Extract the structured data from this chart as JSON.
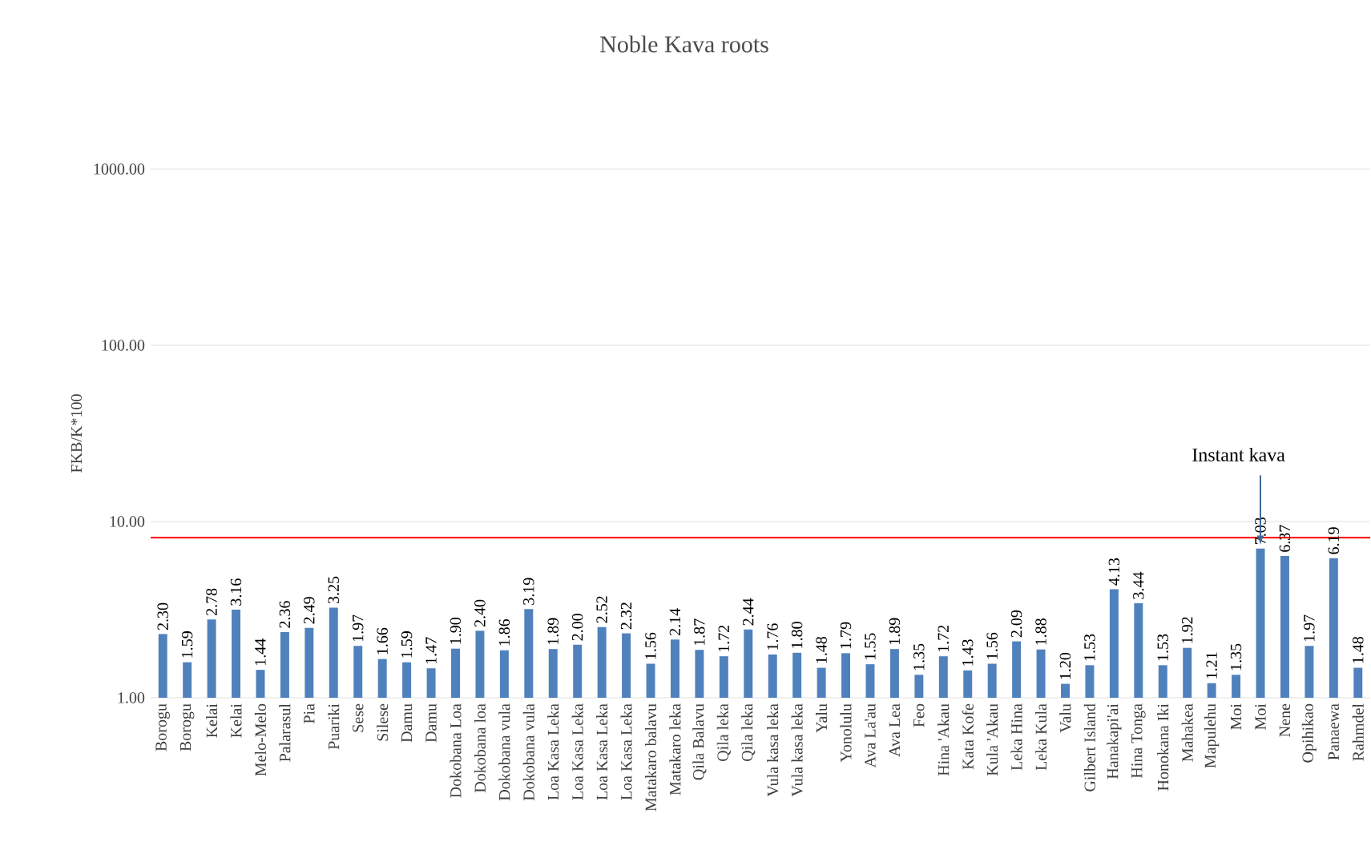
{
  "chart_data": {
    "type": "bar",
    "title": "Noble Kava roots",
    "ylabel": "FKB/K*100",
    "categories": [
      "Borogu",
      "Borogu",
      "Kelai",
      "Kelai",
      "Melo-Melo",
      "Palarasul",
      "Pia",
      "Puariki",
      "Sese",
      "Silese",
      "Damu",
      "Damu",
      "Dokobana Loa",
      "Dokobana loa",
      "Dokobana vula",
      "Dokobana vula",
      "Loa Kasa Leka",
      "Loa Kasa Leka",
      "Loa Kasa Leka",
      "Loa Kasa Leka",
      "Matakaro balavu",
      "Matakaro leka",
      "Qila Balavu",
      "Qila leka",
      "Qila leka",
      "Vula kasa leka",
      "Vula kasa leka",
      "Yalu",
      "Yonolulu",
      "Ava La'au",
      "Ava Lea",
      "Feo",
      "Hina 'Akau",
      "Kata Kofe",
      "Kula 'Akau",
      "Leka Hina",
      "Leka Kula",
      "Valu",
      "Gilbert Island",
      "Hanakapi'ai",
      "Hina Tonga",
      "Honokana Iki",
      "Mahakea",
      "Mapulehu",
      "Moi",
      "Moi",
      "Nene",
      "Opihikao",
      "Panaewa",
      "Rahmdel"
    ],
    "values": [
      2.3,
      1.59,
      2.78,
      3.16,
      1.44,
      2.36,
      2.49,
      3.25,
      1.97,
      1.66,
      1.59,
      1.47,
      1.9,
      2.4,
      1.86,
      3.19,
      1.89,
      2.0,
      2.52,
      2.32,
      1.56,
      2.14,
      1.87,
      1.72,
      2.44,
      1.76,
      1.8,
      1.48,
      1.79,
      1.55,
      1.89,
      1.35,
      1.72,
      1.43,
      1.56,
      2.09,
      1.88,
      1.2,
      1.53,
      4.13,
      3.44,
      1.53,
      1.92,
      1.21,
      1.35,
      7.03,
      6.37,
      1.97,
      6.19,
      1.48
    ],
    "value_labels": [
      "2.30",
      "1.59",
      "2.78",
      "3.16",
      "1.44",
      "2.36",
      "2.49",
      "3.25",
      "1.97",
      "1.66",
      "1.59",
      "1.47",
      "1.90",
      "2.40",
      "1.86",
      "3.19",
      "1.89",
      "2.00",
      "2.52",
      "2.32",
      "1.56",
      "2.14",
      "1.87",
      "1.72",
      "2.44",
      "1.76",
      "1.80",
      "1.48",
      "1.79",
      "1.55",
      "1.89",
      "1.35",
      "1.72",
      "1.43",
      "1.56",
      "2.09",
      "1.88",
      "1.20",
      "1.53",
      "4.13",
      "3.44",
      "1.53",
      "1.92",
      "1.21",
      "1.35",
      "7.03",
      "6.37",
      "1.97",
      "6.19",
      "1.48"
    ],
    "color": "#4f81bd",
    "log": "y",
    "grid": "y",
    "ylim": [
      1,
      1000
    ],
    "yticks": [
      {
        "value": 1,
        "label": "1.00"
      },
      {
        "value": 10,
        "label": "10.00"
      },
      {
        "value": 100,
        "label": "100.00"
      },
      {
        "value": 1000,
        "label": "1000.00"
      }
    ],
    "ref_lines": [
      {
        "axis": "y",
        "value": 8.1,
        "color": "#ff0000"
      }
    ],
    "annotations": [
      "Instant kava"
    ]
  }
}
